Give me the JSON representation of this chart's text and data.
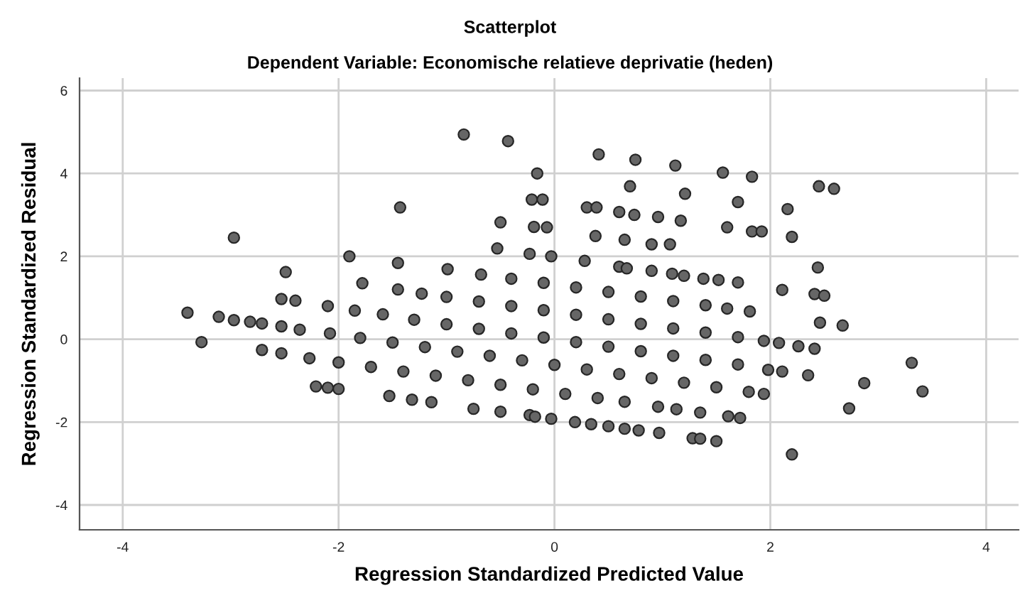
{
  "chart_data": {
    "type": "scatter",
    "title": "Scatterplot",
    "subtitle": "Dependent Variable: Economische relatieve deprivatie (heden)",
    "xlabel": "Regression Standardized Predicted Value",
    "ylabel": "Regression Standardized Residual",
    "xlim": [
      -4.4,
      4.3
    ],
    "ylim": [
      -4.6,
      6.3
    ],
    "xticks": [
      -4,
      -2,
      0,
      2,
      4
    ],
    "yticks": [
      -4,
      -2,
      0,
      2,
      4,
      6
    ],
    "grid": true,
    "marker": "circle",
    "legend": false,
    "series": [
      {
        "color": "#666666",
        "x": [
          -1.9,
          -1.45,
          -0.68,
          -0.4,
          -0.1,
          0.2,
          0.5,
          0.8,
          1.1,
          1.4,
          1.6,
          1.81,
          -2.49,
          -1.78,
          -1.45,
          -1.23,
          -1.0,
          -0.7,
          -0.4,
          -0.1,
          0.2,
          0.5,
          0.8,
          1.1,
          1.4,
          1.7,
          1.94,
          2.08,
          -2.53,
          -2.4,
          -2.1,
          -1.85,
          -1.59,
          -1.3,
          -1.0,
          -0.7,
          -0.4,
          -0.1,
          0.2,
          0.5,
          0.8,
          1.1,
          1.4,
          1.7,
          1.98,
          -3.4,
          -3.11,
          -2.97,
          -2.82,
          -2.71,
          -2.53,
          -2.36,
          -2.08,
          -1.8,
          -1.5,
          -1.2,
          -0.9,
          -0.6,
          -0.3,
          0.0,
          0.3,
          0.6,
          0.9,
          1.2,
          1.5,
          1.8,
          1.94,
          -3.27,
          -2.71,
          -2.53,
          -2.27,
          -2.0,
          -1.7,
          -1.4,
          -1.1,
          -0.8,
          -0.5,
          -0.2,
          0.1,
          0.4,
          0.65,
          0.96,
          1.13,
          1.35,
          1.61,
          1.72,
          -2.21,
          -2.1,
          -2.0,
          -1.53,
          -1.32,
          -1.14,
          -0.75,
          -0.5,
          -0.23,
          -0.18,
          -0.03,
          0.19,
          0.34,
          0.5,
          0.65,
          0.78,
          0.97,
          1.28,
          1.35,
          1.5,
          -0.53,
          -0.23,
          -0.03,
          0.28,
          0.6,
          0.67,
          0.9,
          1.09,
          1.2,
          1.38,
          1.52,
          1.7,
          -2.97,
          -1.43,
          -0.99,
          -0.84,
          -0.43,
          -0.16,
          -0.21,
          -0.5,
          -0.19,
          0.41,
          0.75,
          1.12,
          1.56,
          1.83,
          -0.11,
          0.7,
          1.21,
          1.7,
          2.16,
          2.45,
          2.59,
          0.3,
          0.39,
          0.6,
          0.74,
          0.96,
          1.17,
          -0.07,
          0.38,
          0.65,
          0.9,
          1.07,
          1.6,
          1.83,
          1.92,
          2.2,
          2.44,
          2.11,
          2.41,
          2.5,
          2.46,
          2.67,
          3.31,
          3.41,
          2.87,
          2.73,
          2.2,
          2.35,
          2.11,
          2.41,
          2.26
        ],
        "values": [
          2.0,
          1.84,
          1.56,
          1.46,
          1.36,
          1.25,
          1.14,
          1.03,
          0.92,
          0.82,
          0.74,
          0.67,
          1.62,
          1.35,
          1.2,
          1.1,
          1.02,
          0.91,
          0.8,
          0.7,
          0.59,
          0.48,
          0.37,
          0.26,
          0.16,
          0.05,
          -0.04,
          -0.09,
          0.97,
          0.93,
          0.8,
          0.69,
          0.6,
          0.47,
          0.36,
          0.25,
          0.14,
          0.04,
          -0.07,
          -0.18,
          -0.29,
          -0.4,
          -0.5,
          -0.61,
          -0.74,
          0.64,
          0.54,
          0.46,
          0.42,
          0.38,
          0.31,
          0.23,
          0.14,
          0.03,
          -0.08,
          -0.19,
          -0.3,
          -0.4,
          -0.51,
          -0.62,
          -0.73,
          -0.84,
          -0.94,
          -1.05,
          -1.16,
          -1.27,
          -1.32,
          -0.07,
          -0.26,
          -0.34,
          -0.46,
          -0.56,
          -0.67,
          -0.78,
          -0.88,
          -0.99,
          -1.1,
          -1.21,
          -1.32,
          -1.42,
          -1.51,
          -1.63,
          -1.69,
          -1.77,
          -1.86,
          -1.9,
          -1.14,
          -1.17,
          -1.2,
          -1.37,
          -1.46,
          -1.52,
          -1.68,
          -1.75,
          -1.83,
          -1.87,
          -1.92,
          -2.0,
          -2.05,
          -2.1,
          -2.16,
          -2.2,
          -2.26,
          -2.39,
          -2.4,
          -2.46,
          2.19,
          2.06,
          2.0,
          1.89,
          1.75,
          1.71,
          1.65,
          1.58,
          1.53,
          1.46,
          1.43,
          1.37,
          2.45,
          3.18,
          1.69,
          4.94,
          4.78,
          4.0,
          3.37,
          2.82,
          2.71,
          4.46,
          4.33,
          4.19,
          4.02,
          3.92,
          3.37,
          3.69,
          3.51,
          3.31,
          3.14,
          3.69,
          3.63,
          3.18,
          3.18,
          3.07,
          3.0,
          2.95,
          2.86,
          2.7,
          2.49,
          2.4,
          2.29,
          2.29,
          2.7,
          2.6,
          2.6,
          2.47,
          1.73,
          1.19,
          1.09,
          1.05,
          0.4,
          0.33,
          -0.57,
          -1.26,
          -1.06,
          -1.67,
          -2.78,
          -0.87,
          -0.78,
          -0.23,
          -0.17
        ]
      }
    ]
  }
}
